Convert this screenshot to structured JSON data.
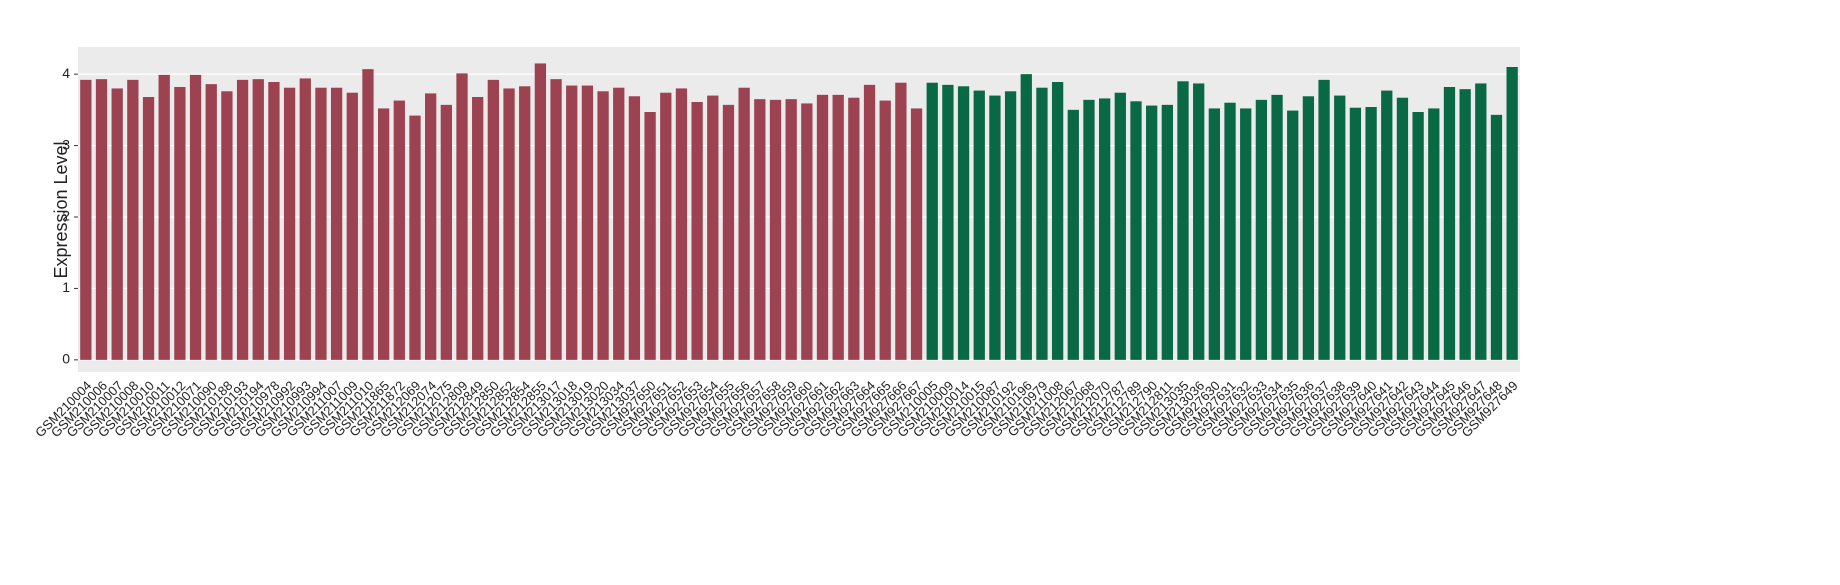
{
  "chart_data": {
    "type": "bar",
    "y_label": "Expression Level",
    "categories": [
      "GSM210004",
      "GSM210006",
      "GSM210007",
      "GSM210008",
      "GSM210010",
      "GSM210011",
      "GSM210012",
      "GSM210071",
      "GSM210090",
      "GSM210188",
      "GSM210193",
      "GSM210194",
      "GSM210978",
      "GSM210992",
      "GSM210993",
      "GSM210994",
      "GSM211007",
      "GSM211009",
      "GSM211010",
      "GSM211865",
      "GSM211872",
      "GSM212069",
      "GSM212074",
      "GSM212075",
      "GSM212809",
      "GSM212849",
      "GSM212850",
      "GSM212852",
      "GSM212854",
      "GSM212855",
      "GSM213017",
      "GSM213018",
      "GSM213019",
      "GSM213020",
      "GSM213034",
      "GSM213037",
      "GSM927650",
      "GSM927651",
      "GSM927652",
      "GSM927653",
      "GSM927654",
      "GSM927655",
      "GSM927656",
      "GSM927657",
      "GSM927658",
      "GSM927659",
      "GSM927660",
      "GSM927661",
      "GSM927662",
      "GSM927663",
      "GSM927664",
      "GSM927665",
      "GSM927666",
      "GSM927667",
      "GSM210005",
      "GSM210009",
      "GSM210014",
      "GSM210015",
      "GSM210087",
      "GSM210192",
      "GSM210196",
      "GSM210979",
      "GSM211008",
      "GSM212067",
      "GSM212068",
      "GSM212070",
      "GSM212787",
      "GSM212789",
      "GSM212790",
      "GSM212811",
      "GSM213035",
      "GSM213036",
      "GSM927630",
      "GSM927631",
      "GSM927632",
      "GSM927633",
      "GSM927634",
      "GSM927635",
      "GSM927636",
      "GSM927637",
      "GSM927638",
      "GSM927639",
      "GSM927640",
      "GSM927641",
      "GSM927642",
      "GSM927643",
      "GSM927644",
      "GSM927645",
      "GSM927646",
      "GSM927647",
      "GSM927648",
      "GSM927649"
    ],
    "series": [
      {
        "color": "#9c4251",
        "values": [
          3.92,
          3.93,
          3.8,
          3.92,
          3.68,
          3.99,
          3.82,
          3.99,
          3.86,
          3.76,
          3.92,
          3.93,
          3.89,
          3.81,
          3.94,
          3.81,
          3.81,
          3.74,
          4.07,
          3.52,
          3.63,
          3.42,
          3.73,
          3.57,
          4.01,
          3.68,
          3.92,
          3.8,
          3.83,
          4.15,
          3.93,
          3.84,
          3.84,
          3.76,
          3.81,
          3.69,
          3.47,
          3.74,
          3.8,
          3.61,
          3.7,
          3.57,
          3.81,
          3.65,
          3.64,
          3.65,
          3.59,
          3.71,
          3.71,
          3.67,
          3.85,
          3.63,
          3.88,
          3.52,
          null,
          null,
          null,
          null,
          null,
          null,
          null,
          null,
          null,
          null,
          null,
          null,
          null,
          null,
          null,
          null,
          null,
          null,
          null,
          null,
          null,
          null,
          null,
          null,
          null,
          null,
          null,
          null,
          null,
          null,
          null,
          null,
          null,
          null,
          null,
          null,
          null,
          null
        ]
      },
      {
        "color": "#0a6945",
        "values": [
          null,
          null,
          null,
          null,
          null,
          null,
          null,
          null,
          null,
          null,
          null,
          null,
          null,
          null,
          null,
          null,
          null,
          null,
          null,
          null,
          null,
          null,
          null,
          null,
          null,
          null,
          null,
          null,
          null,
          null,
          null,
          null,
          null,
          null,
          null,
          null,
          null,
          null,
          null,
          null,
          null,
          null,
          null,
          null,
          null,
          null,
          null,
          null,
          null,
          null,
          null,
          null,
          null,
          null,
          3.88,
          3.85,
          3.83,
          3.77,
          3.7,
          3.76,
          4.0,
          3.81,
          3.89,
          3.5,
          3.64,
          3.66,
          3.74,
          3.62,
          3.56,
          3.57,
          3.9,
          3.87,
          3.52,
          3.6,
          3.52,
          3.64,
          3.71,
          3.49,
          3.69,
          3.92,
          3.7,
          3.53,
          3.54,
          3.77,
          3.67,
          3.47,
          3.52,
          3.82,
          3.79,
          3.87,
          3.43,
          4.1
        ]
      }
    ],
    "ylim": [
      -0.17,
      4.38
    ],
    "yticks": [
      0,
      1,
      2,
      3,
      4
    ],
    "grid": true
  }
}
